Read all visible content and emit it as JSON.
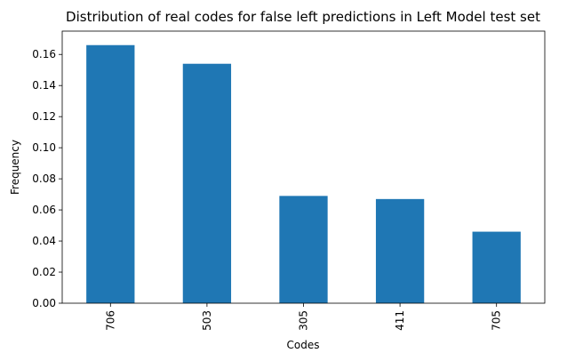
{
  "chart_data": {
    "type": "bar",
    "title": "Distribution of real codes for false left predictions in Left Model test set",
    "xlabel": "Codes",
    "ylabel": "Frequency",
    "categories": [
      "706",
      "503",
      "305",
      "411",
      "705"
    ],
    "values": [
      0.166,
      0.154,
      0.069,
      0.067,
      0.046
    ],
    "ylim": [
      0,
      0.175
    ],
    "yticks": [
      "0.00",
      "0.02",
      "0.04",
      "0.06",
      "0.08",
      "0.10",
      "0.12",
      "0.14",
      "0.16"
    ],
    "bar_color": "#1f77b4",
    "grid": false,
    "legend": "none"
  }
}
